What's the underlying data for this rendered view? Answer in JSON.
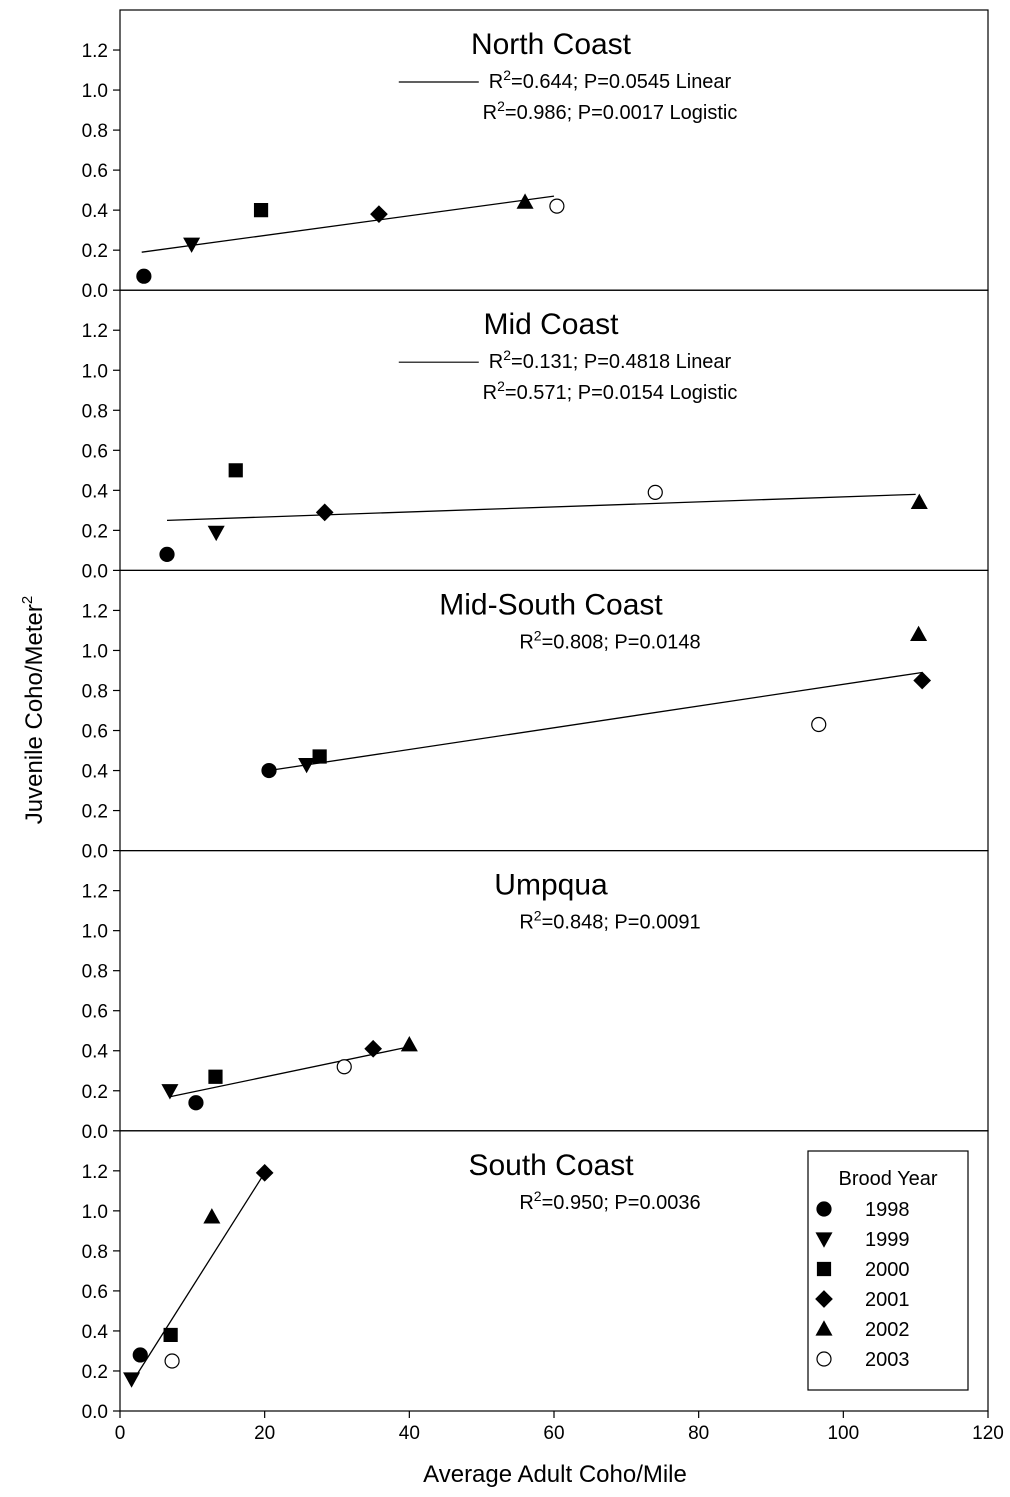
{
  "figure": {
    "x_label": "Average Adult Coho/Mile",
    "y_label": {
      "text": "Juvenile Coho/Meter",
      "sup": "2"
    },
    "xlim": [
      0,
      120
    ],
    "xticks": [
      0,
      20,
      40,
      60,
      80,
      100,
      120
    ]
  },
  "legend": {
    "title": "Brood Year",
    "entries": [
      {
        "name": "1998",
        "marker": "circle",
        "fill": "#000000"
      },
      {
        "name": "1999",
        "marker": "triangle-down",
        "fill": "#000000"
      },
      {
        "name": "2000",
        "marker": "square",
        "fill": "#000000"
      },
      {
        "name": "2001",
        "marker": "diamond",
        "fill": "#000000"
      },
      {
        "name": "2002",
        "marker": "triangle-up",
        "fill": "#000000"
      },
      {
        "name": "2003",
        "marker": "circle",
        "fill": "#ffffff"
      }
    ]
  },
  "chart_data": [
    {
      "type": "scatter",
      "title": "North Coast",
      "stats": [
        {
          "prefix": "R",
          "sup": "2",
          "text": "=0.644; P=0.0545 Linear",
          "fit_key": true
        },
        {
          "prefix": "R",
          "sup": "2",
          "text": "=0.986; P=0.0017 Logistic",
          "fit_key": false
        }
      ],
      "x": [
        3.3,
        9.9,
        19.5,
        35.8,
        56,
        60.4
      ],
      "y": [
        0.07,
        0.23,
        0.4,
        0.38,
        0.44,
        0.42
      ],
      "fit": {
        "x": [
          3,
          60
        ],
        "y": [
          0.19,
          0.47
        ]
      },
      "ylim": [
        0,
        1.4
      ],
      "yticks": [
        {
          "value": 0,
          "label": "0.0"
        },
        {
          "value": 0.2,
          "label": "0.2"
        },
        {
          "value": 0.4,
          "label": "0.4"
        },
        {
          "value": 0.6,
          "label": "0.6"
        },
        {
          "value": 0.8,
          "label": "0.8"
        },
        {
          "value": 1,
          "label": "1.0"
        },
        {
          "value": 1.2,
          "label": "1.2"
        }
      ]
    },
    {
      "type": "scatter",
      "title": "Mid Coast",
      "stats": [
        {
          "prefix": "R",
          "sup": "2",
          "text": "=0.131; P=0.4818 Linear",
          "fit_key": true
        },
        {
          "prefix": "R",
          "sup": "2",
          "text": "=0.571; P=0.0154 Logistic",
          "fit_key": false
        }
      ],
      "x": [
        6.5,
        13.3,
        16,
        28.3,
        110.5,
        74
      ],
      "y": [
        0.08,
        0.19,
        0.5,
        0.29,
        0.34,
        0.39
      ],
      "fit": {
        "x": [
          6.5,
          110
        ],
        "y": [
          0.25,
          0.38
        ]
      },
      "ylim": [
        0,
        1.4
      ],
      "yticks": [
        {
          "value": 0,
          "label": "0.0"
        },
        {
          "value": 0.2,
          "label": "0.2"
        },
        {
          "value": 0.4,
          "label": "0.4"
        },
        {
          "value": 0.6,
          "label": "0.6"
        },
        {
          "value": 0.8,
          "label": "0.8"
        },
        {
          "value": 1,
          "label": "1.0"
        },
        {
          "value": 1.2,
          "label": "1.2"
        }
      ]
    },
    {
      "type": "scatter",
      "title": "Mid-South Coast",
      "stats": [
        {
          "prefix": "R",
          "sup": "2",
          "text": "=0.808; P=0.0148",
          "fit_key": false
        }
      ],
      "x": [
        20.6,
        25.8,
        27.6,
        110.9,
        110.4,
        96.6
      ],
      "y": [
        0.4,
        0.43,
        0.47,
        0.85,
        1.08,
        0.63
      ],
      "fit": {
        "x": [
          20.6,
          110.9
        ],
        "y": [
          0.4,
          0.89
        ]
      },
      "ylim": [
        0,
        1.4
      ],
      "yticks": [
        {
          "value": 0,
          "label": "0.0"
        },
        {
          "value": 0.2,
          "label": "0.2"
        },
        {
          "value": 0.4,
          "label": "0.4"
        },
        {
          "value": 0.6,
          "label": "0.6"
        },
        {
          "value": 0.8,
          "label": "0.8"
        },
        {
          "value": 1,
          "label": "1.0"
        },
        {
          "value": 1.2,
          "label": "1.2"
        }
      ]
    },
    {
      "type": "scatter",
      "title": "Umpqua",
      "stats": [
        {
          "prefix": "R",
          "sup": "2",
          "text": "=0.848; P=0.0091",
          "fit_key": false
        }
      ],
      "x": [
        10.5,
        6.9,
        13.2,
        35,
        40,
        31
      ],
      "y": [
        0.14,
        0.2,
        0.27,
        0.41,
        0.43,
        0.32
      ],
      "fit": {
        "x": [
          6.9,
          40
        ],
        "y": [
          0.17,
          0.42
        ]
      },
      "ylim": [
        0,
        1.4
      ],
      "yticks": [
        {
          "value": 0,
          "label": "0.0"
        },
        {
          "value": 0.2,
          "label": "0.2"
        },
        {
          "value": 0.4,
          "label": "0.4"
        },
        {
          "value": 0.6,
          "label": "0.6"
        },
        {
          "value": 0.8,
          "label": "0.8"
        },
        {
          "value": 1,
          "label": "1.0"
        },
        {
          "value": 1.2,
          "label": "1.2"
        }
      ]
    },
    {
      "type": "scatter",
      "title": "South Coast",
      "stats": [
        {
          "prefix": "R",
          "sup": "2",
          "text": "=0.950; P=0.0036",
          "fit_key": false
        }
      ],
      "x": [
        2.8,
        1.6,
        7,
        20,
        12.7,
        7.2
      ],
      "y": [
        0.28,
        0.16,
        0.38,
        1.19,
        0.97,
        0.25
      ],
      "fit": {
        "x": [
          1.6,
          20
        ],
        "y": [
          0.14,
          1.19
        ]
      },
      "ylim": [
        0,
        1.4
      ],
      "yticks": [
        {
          "value": 0,
          "label": "0.0"
        },
        {
          "value": 0.2,
          "label": "0.2"
        },
        {
          "value": 0.4,
          "label": "0.4"
        },
        {
          "value": 0.6,
          "label": "0.6"
        },
        {
          "value": 0.8,
          "label": "0.8"
        },
        {
          "value": 1,
          "label": "1.0"
        },
        {
          "value": 1.2,
          "label": "1.2"
        }
      ]
    }
  ]
}
